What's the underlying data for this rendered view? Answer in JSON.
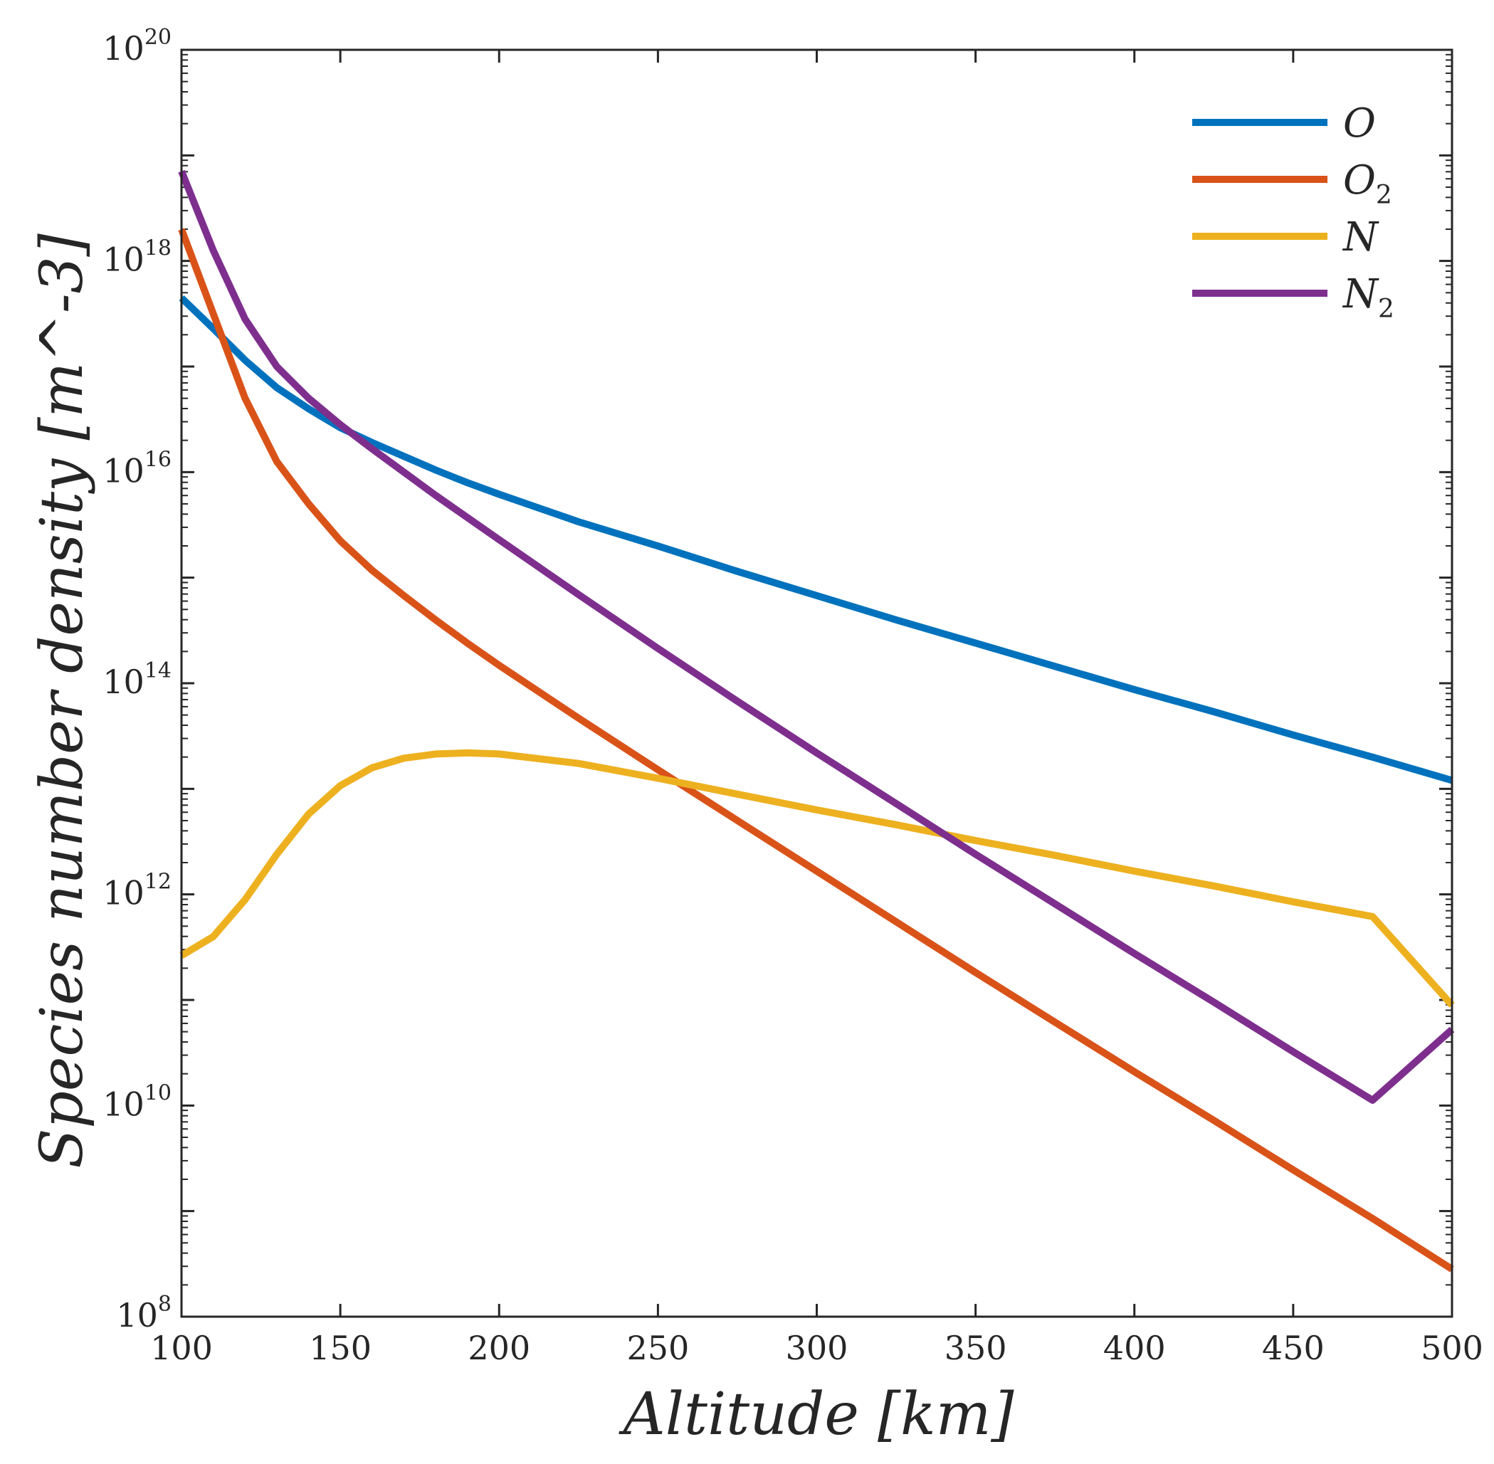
{
  "chart_data": {
    "type": "line",
    "title": "",
    "xlabel": "Altitude [km]",
    "ylabel": "Species number density [m^-3]",
    "x_tick_labels": [
      "100",
      "150",
      "200",
      "250",
      "300",
      "350",
      "400",
      "450",
      "500"
    ],
    "y_tick_labels": [
      {
        "base": "10",
        "exp": "8"
      },
      {
        "base": "10",
        "exp": "10"
      },
      {
        "base": "10",
        "exp": "12"
      },
      {
        "base": "10",
        "exp": "14"
      },
      {
        "base": "10",
        "exp": "16"
      },
      {
        "base": "10",
        "exp": "18"
      },
      {
        "base": "10",
        "exp": "20"
      }
    ],
    "xlim": [
      100,
      500
    ],
    "ylim_log10": [
      8,
      20
    ],
    "yscale": "log",
    "grid": false,
    "legend_position": "top-right",
    "x": [
      100,
      110,
      120,
      130,
      140,
      150,
      160,
      170,
      180,
      190,
      200,
      225,
      250,
      275,
      300,
      325,
      350,
      375,
      400,
      425,
      450,
      475,
      500
    ],
    "series": [
      {
        "name": "O",
        "label": "O",
        "subscript": "",
        "color": "#0072BD",
        "log10_values": [
          17.65,
          17.36,
          17.06,
          16.8,
          16.6,
          16.42,
          16.28,
          16.15,
          16.02,
          15.9,
          15.79,
          15.53,
          15.3,
          15.06,
          14.83,
          14.6,
          14.38,
          14.16,
          13.94,
          13.73,
          13.51,
          13.3,
          13.08
        ]
      },
      {
        "name": "O2",
        "label": "O",
        "subscript": "2",
        "color": "#D95319",
        "log10_values": [
          18.3,
          17.5,
          16.7,
          16.1,
          15.7,
          15.35,
          15.07,
          14.83,
          14.6,
          14.38,
          14.17,
          13.67,
          13.18,
          12.7,
          12.22,
          11.74,
          11.26,
          10.79,
          10.32,
          9.86,
          9.39,
          8.93,
          8.45
        ]
      },
      {
        "name": "N",
        "label": "N",
        "subscript": "",
        "color": "#EDB120",
        "log10_values": [
          11.42,
          11.6,
          11.95,
          12.38,
          12.76,
          13.03,
          13.2,
          13.29,
          13.33,
          13.34,
          13.33,
          13.24,
          13.1,
          12.95,
          12.8,
          12.66,
          12.51,
          12.37,
          12.22,
          12.08,
          11.93,
          11.79,
          10.95
        ]
      },
      {
        "name": "N2",
        "label": "N",
        "subscript": "2",
        "color": "#7E2F8E",
        "log10_values": [
          18.85,
          18.1,
          17.45,
          17.0,
          16.7,
          16.45,
          16.22,
          16.0,
          15.78,
          15.57,
          15.36,
          14.84,
          14.33,
          13.83,
          13.34,
          12.86,
          12.38,
          11.91,
          11.44,
          10.98,
          10.51,
          10.05,
          10.72
        ]
      }
    ]
  }
}
